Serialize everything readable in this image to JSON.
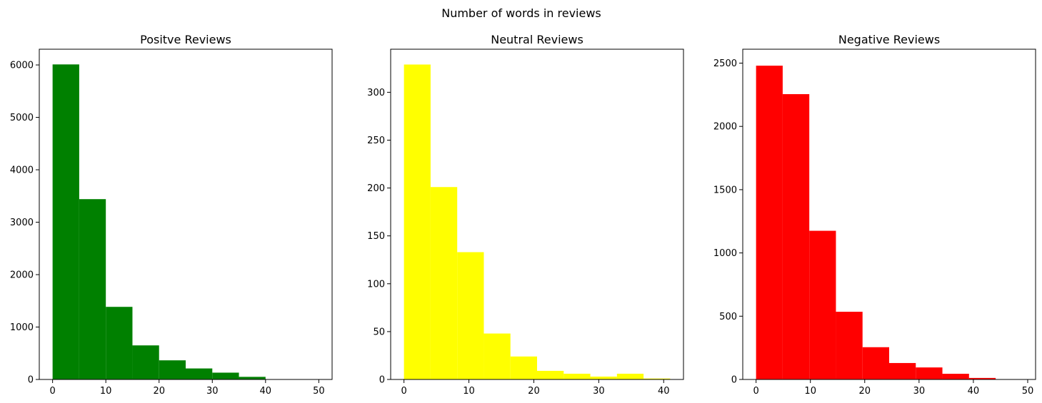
{
  "figure": {
    "suptitle": "Number of words in reviews"
  },
  "chart_data": [
    {
      "type": "histogram",
      "title": "Positve Reviews",
      "color": "#008000",
      "bin_edges": [
        0,
        5,
        10,
        15,
        20,
        25,
        30,
        35,
        40,
        45,
        50
      ],
      "counts": [
        6010,
        3440,
        1385,
        650,
        365,
        210,
        130,
        50,
        0,
        0
      ],
      "xlim": [
        -2.5,
        52.5
      ],
      "ylim": [
        0,
        6300
      ],
      "xticks": [
        0,
        10,
        20,
        30,
        40,
        50
      ],
      "yticks": [
        0,
        1000,
        2000,
        3000,
        4000,
        5000,
        6000
      ],
      "xtick_labels": [
        "0",
        "10",
        "20",
        "30",
        "40",
        "50"
      ],
      "ytick_labels": [
        "0",
        "1000",
        "2000",
        "3000",
        "4000",
        "5000",
        "6000"
      ]
    },
    {
      "type": "histogram",
      "title": "Neutral Reviews",
      "color": "#ffff00",
      "bin_edges": [
        0,
        4.1,
        8.2,
        12.3,
        16.4,
        20.5,
        24.6,
        28.7,
        32.8,
        36.9,
        41
      ],
      "counts": [
        329,
        201,
        133,
        48,
        24,
        9,
        6,
        3,
        6,
        1
      ],
      "xlim": [
        -2.05,
        43.05
      ],
      "ylim": [
        0,
        345
      ],
      "xticks": [
        0,
        10,
        20,
        30,
        40
      ],
      "yticks": [
        0,
        50,
        100,
        150,
        200,
        250,
        300
      ],
      "xtick_labels": [
        "0",
        "10",
        "20",
        "30",
        "40"
      ],
      "ytick_labels": [
        "0",
        "50",
        "100",
        "150",
        "200",
        "250",
        "300"
      ]
    },
    {
      "type": "histogram",
      "title": "Negative Reviews",
      "color": "#ff0000",
      "bin_edges": [
        0,
        4.9,
        9.8,
        14.7,
        19.6,
        24.5,
        29.4,
        34.3,
        39.2,
        44.1,
        49
      ],
      "counts": [
        2480,
        2255,
        1175,
        535,
        255,
        130,
        95,
        45,
        12,
        0
      ],
      "xlim": [
        -2.45,
        51.45
      ],
      "ylim": [
        0,
        2610
      ],
      "xticks": [
        0,
        10,
        20,
        30,
        40,
        50
      ],
      "yticks": [
        0,
        500,
        1000,
        1500,
        2000,
        2500
      ],
      "xtick_labels": [
        "0",
        "10",
        "20",
        "30",
        "40",
        "50"
      ],
      "ytick_labels": [
        "0",
        "500",
        "1000",
        "1500",
        "2000",
        "2500"
      ]
    }
  ]
}
